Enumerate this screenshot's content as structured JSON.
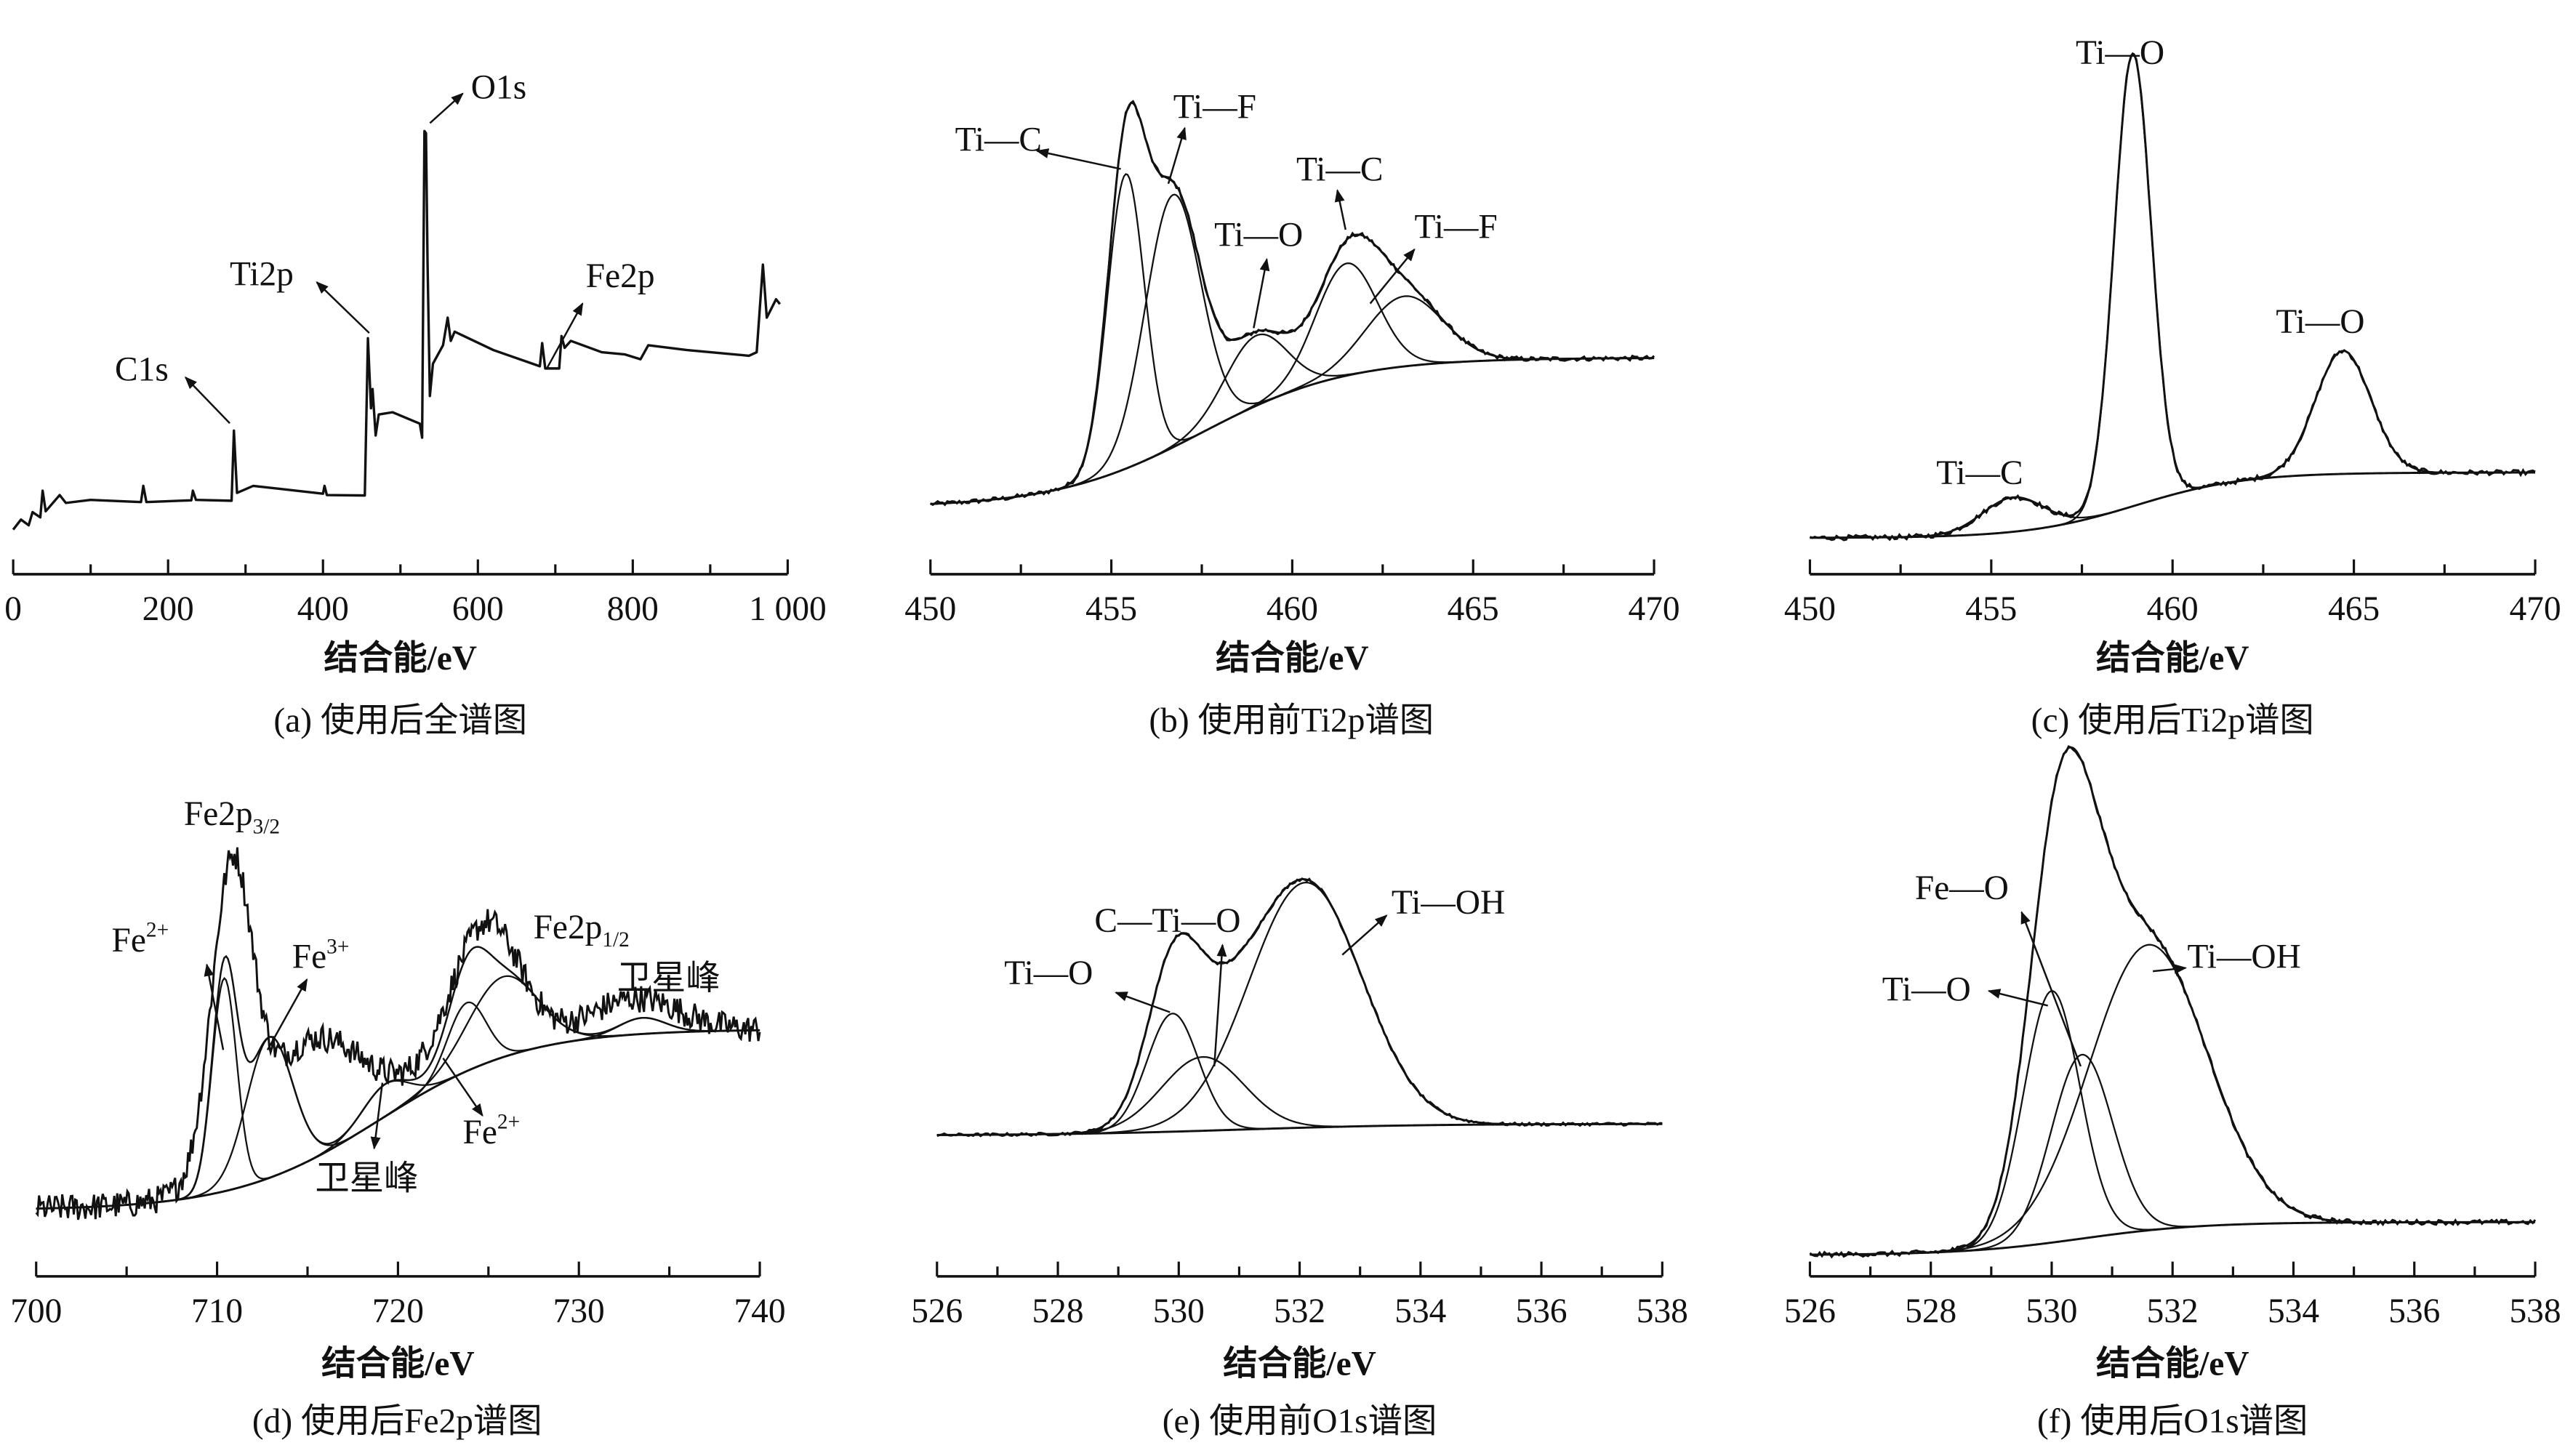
{
  "colors": {
    "line": "#111111",
    "background": "#ffffff"
  },
  "chart_data": [
    {
      "id": "a",
      "type": "line",
      "caption": "(a) 使用后全谱图",
      "xlabel": "结合能/eV",
      "ylabel": "",
      "xlim": [
        0,
        1000
      ],
      "ylim": [
        0,
        100
      ],
      "xticks": [
        0,
        200,
        400,
        600,
        800,
        1000
      ],
      "xtick_labels": [
        "0",
        "200",
        "400",
        "600",
        "800",
        "1 000"
      ],
      "minor_step": 100,
      "series": [
        {
          "name": "survey",
          "points": [
            [
              0,
              5.3
            ],
            [
              10,
              7.6
            ],
            [
              20,
              6.3
            ],
            [
              25,
              9.3
            ],
            [
              35,
              8.1
            ],
            [
              38,
              14.2
            ],
            [
              42,
              9.5
            ],
            [
              60,
              13.2
            ],
            [
              68,
              11.4
            ],
            [
              100,
              12.1
            ],
            [
              165,
              11.6
            ],
            [
              168,
              15.3
            ],
            [
              172,
              11.6
            ],
            [
              230,
              12
            ],
            [
              232,
              14.2
            ],
            [
              236,
              12.1
            ],
            [
              282,
              11.9
            ],
            [
              285,
              27.9
            ],
            [
              289,
              13.7
            ],
            [
              310,
              15.3
            ],
            [
              400,
              13.5
            ],
            [
              402,
              15.3
            ],
            [
              405,
              13.2
            ],
            [
              454,
              13.1
            ],
            [
              458,
              49
            ],
            [
              462,
              33
            ],
            [
              464,
              37.4
            ],
            [
              468,
              26.8
            ],
            [
              472,
              31.6
            ],
            [
              490,
              32.1
            ],
            [
              525,
              29.5
            ],
            [
              528,
              26.3
            ],
            [
              531,
              96.3
            ],
            [
              533,
              95.8
            ],
            [
              535,
              66.3
            ],
            [
              538,
              35.8
            ],
            [
              542,
              43.2
            ],
            [
              555,
              47.4
            ],
            [
              561,
              53.7
            ],
            [
              565,
              48.4
            ],
            [
              570,
              50.5
            ],
            [
              620,
              46.3
            ],
            [
              680,
              42.6
            ],
            [
              683,
              47.9
            ],
            [
              687,
              42.1
            ],
            [
              705,
              42.1
            ],
            [
              708,
              49.5
            ],
            [
              712,
              46.8
            ],
            [
              720,
              48.4
            ],
            [
              760,
              45.8
            ],
            [
              790,
              45.3
            ],
            [
              810,
              44.2
            ],
            [
              820,
              47.4
            ],
            [
              870,
              46.3
            ],
            [
              950,
              45
            ],
            [
              960,
              45.8
            ],
            [
              968,
              65.8
            ],
            [
              973,
              53.7
            ],
            [
              985,
              57.9
            ],
            [
              990,
              56.8
            ]
          ]
        }
      ],
      "annotations": [
        {
          "text": "O1s",
          "x": 531
        },
        {
          "text": "Ti2p",
          "x": 458
        },
        {
          "text": "C1s",
          "x": 285
        },
        {
          "text": "Fe2p",
          "x": 708
        }
      ]
    },
    {
      "id": "b",
      "type": "line",
      "caption": "(b) 使用前Ti2p谱图",
      "xlabel": "结合能/eV",
      "ylabel": "",
      "xlim": [
        450,
        470
      ],
      "ylim": [
        0,
        100
      ],
      "xticks": [
        450,
        455,
        460,
        465,
        470
      ],
      "xtick_labels": [
        "450",
        "455",
        "460",
        "465",
        "470"
      ],
      "minor_step": 2.5,
      "background": {
        "low": 2,
        "high": 34,
        "center": 457.5,
        "width": 2
      },
      "components": [
        {
          "name": "Ti—C",
          "center": 455.4,
          "height": 63,
          "fwhm": 1.2
        },
        {
          "name": "Ti—F",
          "center": 456.7,
          "height": 54,
          "fwhm": 1.8
        },
        {
          "name": "Ti—O",
          "center": 459.0,
          "height": 15,
          "fwhm": 2.0
        },
        {
          "name": "Ti—C",
          "center": 461.5,
          "height": 24,
          "fwhm": 2.0
        },
        {
          "name": "Ti—F",
          "center": 463.1,
          "height": 15,
          "fwhm": 2.5
        }
      ],
      "annotations": [
        {
          "text": "Ti—C"
        },
        {
          "text": "Ti—F"
        },
        {
          "text": "Ti—O"
        },
        {
          "text": "Ti—C"
        },
        {
          "text": "Ti—F"
        }
      ]
    },
    {
      "id": "c",
      "type": "line",
      "caption": "(c) 使用后Ti2p谱图",
      "xlabel": "结合能/eV",
      "ylabel": "",
      "xlim": [
        450,
        470
      ],
      "ylim": [
        0,
        100
      ],
      "xticks": [
        450,
        455,
        460,
        465,
        470
      ],
      "xtick_labels": [
        "450",
        "455",
        "460",
        "465",
        "470"
      ],
      "minor_step": 2.5,
      "background": {
        "low": 0.7,
        "high": 14,
        "center": 459,
        "width": 1.5
      },
      "components": [
        {
          "name": "Ti—C",
          "center": 455.6,
          "height": 7,
          "fwhm": 2.0
        },
        {
          "name": "Ti—O",
          "center": 458.9,
          "height": 92,
          "fwhm": 1.2
        },
        {
          "name": "Ti—O",
          "center": 464.7,
          "height": 25,
          "fwhm": 1.8
        }
      ],
      "annotations": [
        {
          "text": "Ti—O"
        },
        {
          "text": "Ti—O"
        },
        {
          "text": "Ti—C"
        }
      ]
    },
    {
      "id": "d",
      "type": "line",
      "caption": "(d) 使用后Fe2p谱图",
      "xlabel": "结合能/eV",
      "ylabel": "",
      "xlim": [
        700,
        740
      ],
      "ylim": [
        0,
        100
      ],
      "xticks": [
        700,
        710,
        720,
        730,
        740
      ],
      "xtick_labels": [
        "700",
        "710",
        "720",
        "730",
        "740"
      ],
      "minor_step": 5,
      "background": {
        "low": 3,
        "high": 48,
        "center": 719,
        "width": 4
      },
      "components": [
        {
          "name": "Fe2+",
          "center": 710.4,
          "height": 53,
          "fwhm": 1.6
        },
        {
          "name": "Fe3+",
          "center": 712.9,
          "height": 35,
          "fwhm": 3.0
        },
        {
          "name": "卫星峰",
          "center": 719.3,
          "height": 8,
          "fwhm": 3.0
        },
        {
          "name": "Fe2+",
          "center": 723.8,
          "height": 17,
          "fwhm": 2.5
        },
        {
          "name": "Fe2p1/2",
          "center": 725.8,
          "height": 20,
          "fwhm": 4.5
        },
        {
          "name": "卫星峰",
          "center": 733.5,
          "height": 4,
          "fwhm": 3.0
        }
      ],
      "measured": [
        {
          "center": 710.8,
          "height": 72,
          "fwhm": 2.6
        },
        {
          "center": 715.0,
          "height": 30,
          "fwhm": 7.0
        },
        {
          "center": 724.8,
          "height": 35,
          "fwhm": 4.5
        },
        {
          "center": 733.0,
          "height": 9,
          "fwhm": 6.0
        }
      ],
      "noise": 3.5,
      "annotations": [
        {
          "text": "Fe2p",
          "sub": "3/2"
        },
        {
          "text": "Fe",
          "sup": "2+"
        },
        {
          "text": "Fe",
          "sup": "3+"
        },
        {
          "text": "Fe2p",
          "sub": "1/2"
        },
        {
          "text": "卫星峰"
        },
        {
          "text": "卫星峰"
        },
        {
          "text": "Fe",
          "sup": "2+"
        }
      ]
    },
    {
      "id": "e",
      "type": "line",
      "caption": "(e) 使用前O1s谱图",
      "xlabel": "结合能/eV",
      "ylabel": "",
      "xlim": [
        526,
        538
      ],
      "ylim": [
        0,
        100
      ],
      "xticks": [
        526,
        528,
        530,
        532,
        534,
        536,
        538
      ],
      "xtick_labels": [
        "526",
        "528",
        "530",
        "532",
        "534",
        "536",
        "538"
      ],
      "minor_step": 1,
      "background": {
        "low": 4.4,
        "high": 8.3,
        "center": 531,
        "width": 1.5
      },
      "components": [
        {
          "name": "Ti—O",
          "center": 529.9,
          "height": 40,
          "fwhm": 1.0
        },
        {
          "name": "C—Ti—O",
          "center": 530.4,
          "height": 25,
          "fwhm": 1.6
        },
        {
          "name": "Ti—OH",
          "center": 532.1,
          "height": 83,
          "fwhm": 2.2
        }
      ],
      "annotations": [
        {
          "text": "Ti—O"
        },
        {
          "text": "C—Ti—O"
        },
        {
          "text": "Ti—OH"
        }
      ]
    },
    {
      "id": "f",
      "type": "line",
      "caption": "(f) 使用后O1s谱图",
      "xlabel": "结合能/eV",
      "ylabel": "",
      "xlim": [
        526,
        538
      ],
      "ylim": [
        0,
        100
      ],
      "xticks": [
        526,
        528,
        530,
        532,
        534,
        536,
        538
      ],
      "xtick_labels": [
        "526",
        "528",
        "530",
        "532",
        "534",
        "536",
        "538"
      ],
      "minor_step": 1,
      "background": {
        "low": 0,
        "high": 6.8,
        "center": 530.5,
        "width": 1
      },
      "components": [
        {
          "name": "Ti—O",
          "center": 530.0,
          "height": 52,
          "fwhm": 1.1
        },
        {
          "name": "Fe—O",
          "center": 530.5,
          "height": 38,
          "fwhm": 1.2
        },
        {
          "name": "Ti—OH",
          "center": 531.6,
          "height": 59,
          "fwhm": 2.3
        }
      ],
      "annotations": [
        {
          "text": "Fe—O"
        },
        {
          "text": "Ti—O"
        },
        {
          "text": "Ti—OH"
        }
      ]
    }
  ]
}
